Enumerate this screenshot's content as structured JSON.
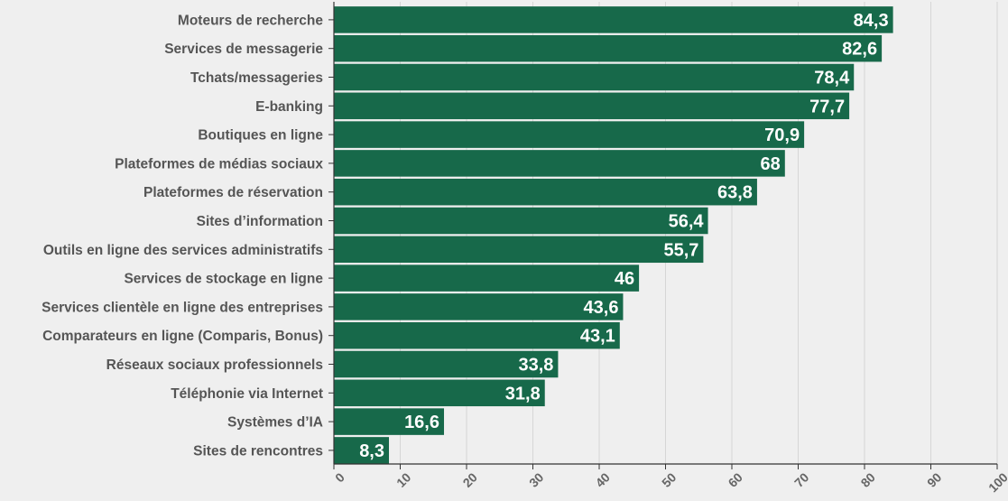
{
  "chart_data": {
    "type": "bar",
    "orientation": "horizontal",
    "categories": [
      "Moteurs de recherche",
      "Services de messagerie",
      "Tchats/messageries",
      "E-banking",
      "Boutiques en ligne",
      "Plateformes de médias sociaux",
      "Plateformes de réservation",
      "Sites d’information",
      "Outils en ligne des services administratifs",
      "Services de stockage en ligne",
      "Services clientèle en ligne des entreprises",
      "Comparateurs en ligne (Comparis, Bonus)",
      "Réseaux sociaux professionnels",
      "Téléphonie via Internet",
      "Systèmes d’IA",
      "Sites de rencontres"
    ],
    "values": [
      84.3,
      82.6,
      78.4,
      77.7,
      70.9,
      68,
      63.8,
      56.4,
      55.7,
      46,
      43.6,
      43.1,
      33.8,
      31.8,
      16.6,
      8.3
    ],
    "value_labels": [
      "84,3",
      "82,6",
      "78,4",
      "77,7",
      "70,9",
      "68",
      "63,8",
      "56,4",
      "55,7",
      "46",
      "43,6",
      "43,1",
      "33,8",
      "31,8",
      "16,6",
      "8,3"
    ],
    "x_ticks": [
      "0",
      "10",
      "20",
      "30",
      "40",
      "50",
      "60",
      "70",
      "80",
      "90",
      "100"
    ],
    "xlim": [
      0,
      100
    ],
    "title": "",
    "xlabel": "",
    "ylabel": "",
    "grid": "vertical",
    "legend": "none",
    "bar_color": "#17694a",
    "background_color": "#efefef"
  }
}
